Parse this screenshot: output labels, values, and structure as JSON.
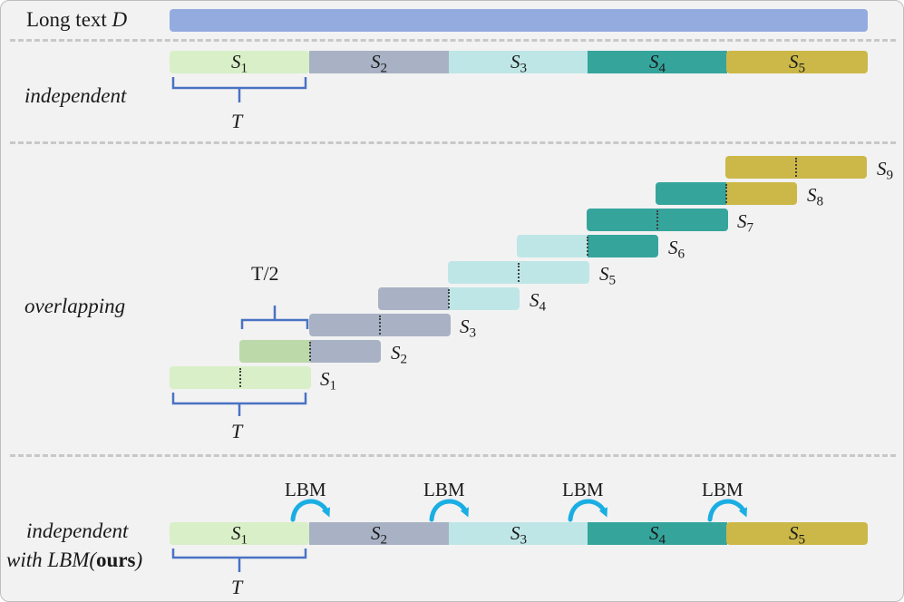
{
  "colors": {
    "long_text": "#94abe0",
    "s1": "#d8efc7",
    "s2": "#a8b2c4",
    "s3": "#bfe6e6",
    "s4": "#35a59c",
    "s5": "#cbb848",
    "s1_overlap_dark": "#bcd9a9",
    "brace": "#4a72c4",
    "arrow": "#1aaee3"
  },
  "header": {
    "label_prefix": "Long text ",
    "label_var": "D"
  },
  "independent": {
    "label": "independent",
    "segments": [
      {
        "var": "S",
        "sub": "1"
      },
      {
        "var": "S",
        "sub": "2"
      },
      {
        "var": "S",
        "sub": "3"
      },
      {
        "var": "S",
        "sub": "4"
      },
      {
        "var": "S",
        "sub": "5"
      }
    ],
    "brace_label": "T"
  },
  "overlapping": {
    "label": "overlapping",
    "segments": [
      {
        "var": "S",
        "sub": "1"
      },
      {
        "var": "S",
        "sub": "2"
      },
      {
        "var": "S",
        "sub": "3"
      },
      {
        "var": "S",
        "sub": "4"
      },
      {
        "var": "S",
        "sub": "5"
      },
      {
        "var": "S",
        "sub": "6"
      },
      {
        "var": "S",
        "sub": "7"
      },
      {
        "var": "S",
        "sub": "8"
      },
      {
        "var": "S",
        "sub": "9"
      }
    ],
    "half_brace_label": "T/2",
    "brace_label": "T"
  },
  "lbm": {
    "label_line1": "independent",
    "label_line2_prefix": "with LBM(",
    "label_line2_bold": "ours",
    "label_line2_suffix": ")",
    "segments": [
      {
        "var": "S",
        "sub": "1"
      },
      {
        "var": "S",
        "sub": "2"
      },
      {
        "var": "S",
        "sub": "3"
      },
      {
        "var": "S",
        "sub": "4"
      },
      {
        "var": "S",
        "sub": "5"
      }
    ],
    "arrow_labels": [
      "LBM",
      "LBM",
      "LBM",
      "LBM"
    ],
    "brace_label": "T"
  }
}
